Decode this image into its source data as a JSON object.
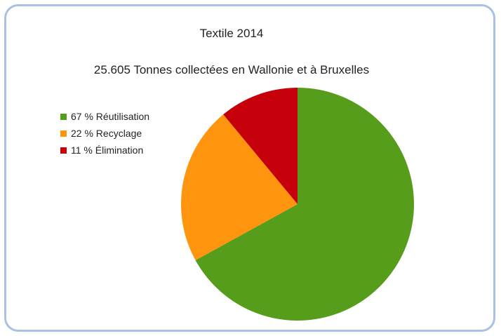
{
  "chart_data": {
    "type": "pie",
    "title": "Textile 2014",
    "subtitle": "25.605 Tonnes collectées en Wallonie et à Bruxelles",
    "legend_position": "left",
    "slices": [
      {
        "label": "67 % Réutilisation",
        "value": 67,
        "color": "#579d1c"
      },
      {
        "label": "22 % Recyclage",
        "value": 22,
        "color": "#ff950e"
      },
      {
        "label": "11 % Élimination",
        "value": 11,
        "color": "#c5000b"
      }
    ]
  }
}
